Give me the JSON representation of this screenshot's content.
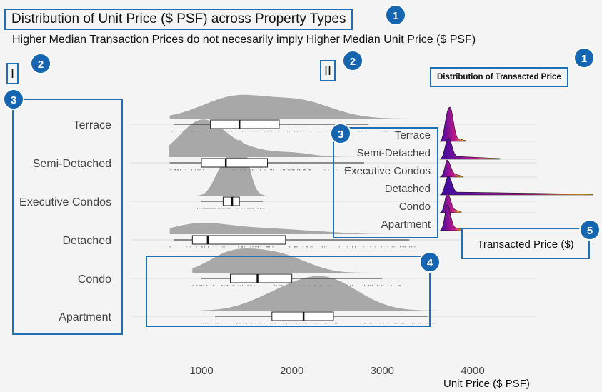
{
  "title": "Distribution of Unit Price ($ PSF) across Property Types",
  "subtitle": "Higher Median Transaction Prices do not necesarily imply Higher Median Unit Price ($ PSF)",
  "panel_tags": [
    "I",
    "II"
  ],
  "inset_title": "Distribution of Transacted Price",
  "inset_xlabel": "Transacted Price ($)",
  "badges": [
    "1",
    "1",
    "2",
    "2",
    "3",
    "3",
    "4",
    "5"
  ],
  "colors": {
    "callout": "#1f6fb5",
    "badge": "#1565b0",
    "density_fill": "#a8a8a8",
    "ridge_start": "#3c0aa0",
    "ridge_end": "#ffd000",
    "gridline": "#dcdcdc"
  },
  "chart_data": [
    {
      "type": "ridgeline-boxplot",
      "xlabel": "Unit Price ($ PSF)",
      "ylabel": "",
      "xticks": [
        1000,
        2000,
        3000,
        4000
      ],
      "xlim": [
        200,
        4800
      ],
      "categories": [
        "Terrace",
        "Semi-Detached",
        "Executive Condos",
        "Detached",
        "Condo",
        "Apartment"
      ],
      "boxes": [
        {
          "category": "Terrace",
          "min": 700,
          "q1": 1100,
          "median": 1420,
          "q3": 1860,
          "max": 2850
        },
        {
          "category": "Semi-Detached",
          "min": 650,
          "q1": 1000,
          "median": 1270,
          "q3": 1730,
          "max": 2800
        },
        {
          "category": "Executive Condos",
          "min": 1000,
          "q1": 1240,
          "median": 1340,
          "q3": 1420,
          "max": 1680
        },
        {
          "category": "Detached",
          "min": 700,
          "q1": 900,
          "median": 1070,
          "q3": 1930,
          "max": 3300
        },
        {
          "category": "Condo",
          "min": 1000,
          "q1": 1320,
          "median": 1620,
          "q3": 2000,
          "max": 3000
        },
        {
          "category": "Apartment",
          "min": 1150,
          "q1": 1780,
          "median": 2130,
          "q3": 2460,
          "max": 3500
        }
      ],
      "density_range": [
        {
          "category": "Terrace",
          "from": 650,
          "to": 3350
        },
        {
          "category": "Semi-Detached",
          "from": 640,
          "to": 2900
        },
        {
          "category": "Executive Condos",
          "from": 950,
          "to": 1700
        },
        {
          "category": "Detached",
          "from": 650,
          "to": 3400
        },
        {
          "category": "Condo",
          "from": 900,
          "to": 3200
        },
        {
          "category": "Apartment",
          "from": 1000,
          "to": 3600
        }
      ]
    },
    {
      "type": "ridgeline",
      "title": "Distribution of Transacted Price",
      "xlabel": "Transacted Price ($)",
      "categories": [
        "Terrace",
        "Semi-Detached",
        "Executive Condos",
        "Detached",
        "Condo",
        "Apartment"
      ]
    }
  ]
}
